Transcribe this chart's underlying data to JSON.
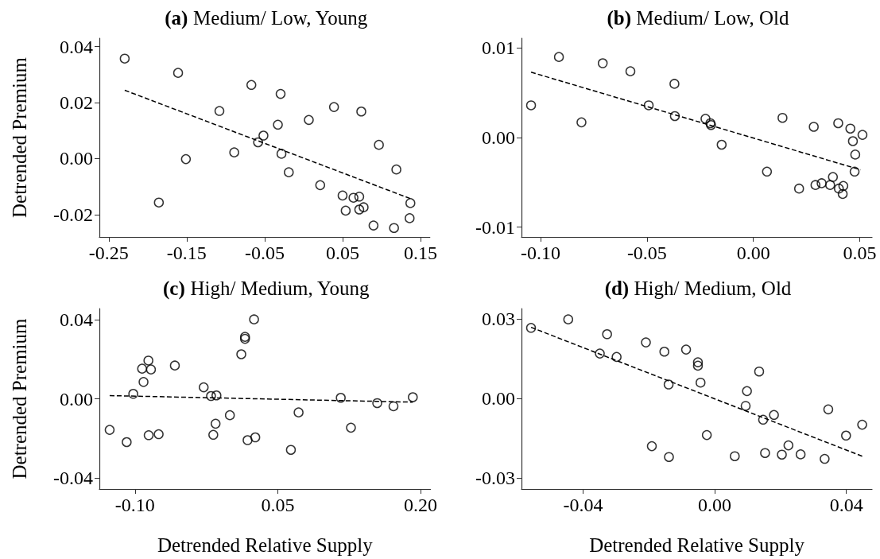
{
  "chart_data": [
    {
      "type": "scatter",
      "title": "(a) Medium/ Low, Young",
      "ylabel": "Detrended Premium",
      "xlim": [
        -0.262,
        0.162
      ],
      "ylim": [
        -0.028,
        0.043
      ],
      "xticks": [
        {
          "value": -0.25,
          "label": "-0.25"
        },
        {
          "value": -0.15,
          "label": "-0.15"
        },
        {
          "value": -0.05,
          "label": "-0.05"
        },
        {
          "value": 0.05,
          "label": "0.05"
        },
        {
          "value": 0.15,
          "label": "0.15"
        }
      ],
      "yticks": [
        {
          "value": -0.02,
          "label": "-0.02"
        },
        {
          "value": 0,
          "label": "0.00"
        },
        {
          "value": 0.02,
          "label": "0.02"
        },
        {
          "value": 0.04,
          "label": "0.04"
        }
      ],
      "grid": false,
      "series": [
        {
          "type": "scatter",
          "color": "#000000",
          "marker": "circle",
          "x": [
            -0.2295,
            -0.161,
            -0.067,
            -0.0295,
            -0.108,
            0.039,
            0.074,
            -0.033,
            0.0067,
            -0.0515,
            -0.0584,
            -0.089,
            -0.151,
            -0.0284,
            -0.019,
            0.0966,
            0.119,
            0.0213,
            -0.1857,
            0.05,
            0.064,
            0.0714,
            0.054,
            0.0714,
            0.077,
            0.137,
            0.136,
            0.0897,
            0.116
          ],
          "values": [
            0.0357,
            0.0306,
            0.0263,
            0.0231,
            0.017,
            0.0184,
            0.0168,
            0.0121,
            0.0138,
            0.0082,
            0.0058,
            0.0022,
            -0.0002,
            0.0017,
            -0.0049,
            0.0049,
            -0.0039,
            -0.0095,
            -0.0157,
            -0.0132,
            -0.014,
            -0.0136,
            -0.0186,
            -0.0182,
            -0.0174,
            -0.0159,
            -0.0213,
            -0.0239,
            -0.0248
          ]
        },
        {
          "type": "line",
          "color": "#000000",
          "line_style": "dashed",
          "marker": "none",
          "x": [
            -0.2295,
            0.1398
          ],
          "values": [
            0.0244,
            -0.0146
          ]
        }
      ]
    },
    {
      "type": "scatter",
      "title": "(b) Medium/ Low, Old",
      "xlim": [
        -0.109,
        0.0558
      ],
      "ylim": [
        -0.0111,
        0.0111
      ],
      "xticks": [
        {
          "value": -0.1,
          "label": "-0.10"
        },
        {
          "value": -0.05,
          "label": "-0.05"
        },
        {
          "value": 0,
          "label": "0.00"
        },
        {
          "value": 0.05,
          "label": "0.05"
        }
      ],
      "yticks": [
        {
          "value": -0.01,
          "label": "-0.01"
        },
        {
          "value": 0,
          "label": "0.00"
        },
        {
          "value": 0.01,
          "label": "0.01"
        }
      ],
      "grid": false,
      "series": [
        {
          "type": "scatter",
          "color": "#000000",
          "marker": "circle",
          "x": [
            -0.1045,
            -0.0914,
            -0.0808,
            -0.0708,
            -0.0578,
            -0.0371,
            -0.0492,
            -0.0369,
            -0.0225,
            -0.0202,
            -0.0199,
            -0.0149,
            0.0137,
            0.0064,
            0.0284,
            0.0399,
            0.0456,
            0.0513,
            0.0468,
            0.0479,
            0.0476,
            0.0215,
            0.0292,
            0.0321,
            0.0361,
            0.0374,
            0.0402,
            0.0423,
            0.042
          ],
          "values": [
            0.0036,
            0.009,
            0.0017,
            0.0083,
            0.0074,
            0.006,
            0.0036,
            0.0024,
            0.0021,
            0.0016,
            0.0014,
            -0.0008,
            0.0022,
            -0.0038,
            0.0012,
            0.0016,
            0.001,
            0.0003,
            -0.0004,
            -0.0019,
            -0.0038,
            -0.0057,
            -0.0053,
            -0.0051,
            -0.0053,
            -0.0044,
            -0.0057,
            -0.0054,
            -0.0063
          ]
        },
        {
          "type": "line",
          "color": "#000000",
          "line_style": "dashed",
          "marker": "none",
          "x": [
            -0.1045,
            0.0504
          ],
          "values": [
            0.0073,
            -0.0036
          ]
        }
      ]
    },
    {
      "type": "scatter",
      "title": "(c) High/ Medium, Young",
      "xlabel": "Detrended Relative Supply",
      "ylabel": "Detrended Premium",
      "xlim": [
        -0.1374,
        0.2105
      ],
      "ylim": [
        -0.0456,
        0.0456
      ],
      "xticks": [
        {
          "value": -0.1,
          "label": "-0.10"
        },
        {
          "value": 0.05,
          "label": "0.05"
        },
        {
          "value": 0.2,
          "label": "0.20"
        }
      ],
      "yticks": [
        {
          "value": -0.04,
          "label": "-0.04"
        },
        {
          "value": 0,
          "label": "0.00"
        },
        {
          "value": 0.04,
          "label": "0.04"
        }
      ],
      "grid": false,
      "series": [
        {
          "type": "scatter",
          "color": "#000000",
          "marker": "circle",
          "x": [
            -0.1266,
            -0.1087,
            -0.1018,
            -0.0925,
            -0.091,
            -0.0859,
            -0.0832,
            -0.0856,
            -0.0751,
            -0.0581,
            -0.0278,
            -0.0201,
            -0.0144,
            -0.0177,
            -0.0153,
            -0.0003,
            0.0117,
            0.0156,
            0.0156,
            0.0251,
            0.0183,
            0.0264,
            0.0638,
            0.0719,
            0.1162,
            0.1269,
            0.1545,
            0.1716,
            0.1919
          ],
          "values": [
            -0.0157,
            -0.0219,
            0.0025,
            0.0152,
            0.0085,
            0.0193,
            0.0148,
            -0.0184,
            -0.0179,
            0.0168,
            0.0058,
            0.0014,
            0.0017,
            -0.0182,
            -0.0126,
            -0.0083,
            0.0225,
            0.0313,
            0.0303,
            0.0401,
            -0.0209,
            -0.0195,
            -0.0258,
            -0.0069,
            0.0005,
            -0.0146,
            -0.0022,
            -0.0038,
            0.0008
          ]
        },
        {
          "type": "line",
          "color": "#000000",
          "line_style": "dashed",
          "marker": "none",
          "x": [
            -0.1266,
            0.1919
          ],
          "values": [
            0.0016,
            -0.0017
          ]
        }
      ]
    },
    {
      "type": "scatter",
      "title": "(d) High/ Medium, Old",
      "xlabel": "Detrended Relative Supply",
      "xlim": [
        -0.0587,
        0.0478
      ],
      "ylim": [
        -0.0342,
        0.034
      ],
      "xticks": [
        {
          "value": -0.04,
          "label": "-0.04"
        },
        {
          "value": 0,
          "label": "0.00"
        },
        {
          "value": 0.04,
          "label": "0.04"
        }
      ],
      "yticks": [
        {
          "value": -0.03,
          "label": "-0.03"
        },
        {
          "value": 0,
          "label": "0.00"
        },
        {
          "value": 0.03,
          "label": "0.03"
        }
      ],
      "grid": false,
      "series": [
        {
          "type": "scatter",
          "color": "#000000",
          "marker": "circle",
          "x": [
            -0.0558,
            -0.0445,
            -0.0327,
            -0.0349,
            -0.0298,
            -0.0209,
            -0.0153,
            -0.0087,
            -0.0051,
            -0.0051,
            -0.014,
            -0.0043,
            0.0135,
            0.0098,
            0.0094,
            0.0147,
            0.018,
            0.0345,
            0.0448,
            0.0399,
            -0.0024,
            -0.0191,
            -0.0139,
            0.0061,
            0.0153,
            0.0204,
            0.0224,
            0.0261,
            0.0334
          ],
          "values": [
            0.0267,
            0.0299,
            0.0243,
            0.017,
            0.0157,
            0.0212,
            0.0177,
            0.0185,
            0.0137,
            0.0124,
            0.0053,
            0.006,
            0.0102,
            0.0028,
            -0.0028,
            -0.008,
            -0.0062,
            -0.0041,
            -0.0099,
            -0.014,
            -0.0138,
            -0.018,
            -0.0221,
            -0.0218,
            -0.0206,
            -0.0212,
            -0.0177,
            -0.0211,
            -0.0228
          ]
        },
        {
          "type": "line",
          "color": "#000000",
          "line_style": "dashed",
          "marker": "none",
          "x": [
            -0.0558,
            0.0448
          ],
          "values": [
            0.0269,
            -0.0218
          ]
        }
      ]
    }
  ]
}
